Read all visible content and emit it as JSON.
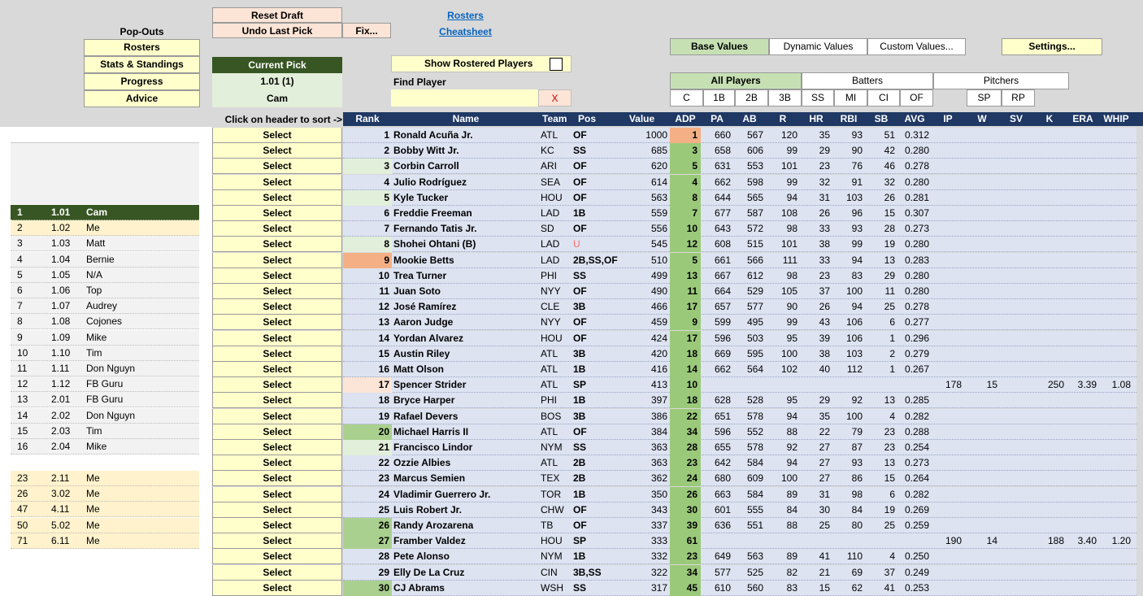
{
  "colors": {
    "header_bg": "#1f3864",
    "button_yellow": "#ffffcc",
    "button_pink": "#fce4d6",
    "adp_green": "#9bc97a",
    "current_pick_dark": "#375623",
    "my_pick": "#fff2cc",
    "table_bg": "#dde3f1"
  },
  "top": {
    "reset_draft": "Reset Draft",
    "undo_last_pick": "Undo Last Pick",
    "fix": "Fix...",
    "rosters_link": "Rosters",
    "cheatsheet_link": "Cheatsheet",
    "popouts_label": "Pop-Outs",
    "popouts": [
      "Rosters",
      "Stats & Standings",
      "Progress",
      "Advice"
    ],
    "current_pick_label": "Current Pick",
    "current_pick_value": "1.01  (1)",
    "current_pick_team": "Cam",
    "show_rostered": "Show Rostered Players",
    "find_player_label": "Find Player",
    "find_player_value": "",
    "clear_x": "X",
    "sort_hint": "Click on header to sort ->",
    "value_modes": [
      "Base Values",
      "Dynamic Values",
      "Custom Values..."
    ],
    "settings": "Settings...",
    "player_groups": [
      "All Players",
      "Batters",
      "Pitchers"
    ],
    "pos_filters_bat": [
      "C",
      "1B",
      "2B",
      "3B",
      "SS",
      "MI",
      "CI",
      "OF"
    ],
    "pos_filters_pit": [
      "SP",
      "RP"
    ]
  },
  "columns": [
    "Rank",
    "Name",
    "Team",
    "Pos",
    "Value",
    "ADP",
    "PA",
    "AB",
    "R",
    "HR",
    "RBI",
    "SB",
    "AVG",
    "IP",
    "W",
    "SV",
    "K",
    "ERA",
    "WHIP"
  ],
  "select_label": "Select",
  "draft_order": [
    {
      "n": "1",
      "pick": "1.01",
      "team": "Cam",
      "current": true
    },
    {
      "n": "2",
      "pick": "1.02",
      "team": "Me",
      "mine": true
    },
    {
      "n": "3",
      "pick": "1.03",
      "team": "Matt"
    },
    {
      "n": "4",
      "pick": "1.04",
      "team": "Bernie"
    },
    {
      "n": "5",
      "pick": "1.05",
      "team": "N/A"
    },
    {
      "n": "6",
      "pick": "1.06",
      "team": "Top"
    },
    {
      "n": "7",
      "pick": "1.07",
      "team": "Audrey"
    },
    {
      "n": "8",
      "pick": "1.08",
      "team": "Cojones"
    },
    {
      "n": "9",
      "pick": "1.09",
      "team": "Mike"
    },
    {
      "n": "10",
      "pick": "1.10",
      "team": "Tim"
    },
    {
      "n": "11",
      "pick": "1.11",
      "team": "Don Nguyn"
    },
    {
      "n": "12",
      "pick": "1.12",
      "team": "FB Guru"
    },
    {
      "n": "13",
      "pick": "2.01",
      "team": "FB Guru"
    },
    {
      "n": "14",
      "pick": "2.02",
      "team": "Don Nguyn"
    },
    {
      "n": "15",
      "pick": "2.03",
      "team": "Tim"
    },
    {
      "n": "16",
      "pick": "2.04",
      "team": "Mike"
    }
  ],
  "my_picks": [
    {
      "n": "23",
      "pick": "2.11",
      "team": "Me"
    },
    {
      "n": "26",
      "pick": "3.02",
      "team": "Me"
    },
    {
      "n": "47",
      "pick": "4.11",
      "team": "Me"
    },
    {
      "n": "50",
      "pick": "5.02",
      "team": "Me"
    },
    {
      "n": "71",
      "pick": "6.11",
      "team": "Me"
    }
  ],
  "players": [
    {
      "rank": "1",
      "name": "Ronald Acuña Jr.",
      "team": "ATL",
      "pos": "OF",
      "value": "1000",
      "adp": "1",
      "pa": "660",
      "ab": "567",
      "r": "120",
      "hr": "35",
      "rbi": "93",
      "sb": "51",
      "avg": "0.312",
      "ip": "",
      "w": "",
      "sv": "",
      "k": "",
      "era": "",
      "whip": "",
      "adp_hi": "orange"
    },
    {
      "rank": "2",
      "name": "Bobby Witt Jr.",
      "team": "KC",
      "pos": "SS",
      "value": "685",
      "adp": "3",
      "pa": "658",
      "ab": "606",
      "r": "99",
      "hr": "29",
      "rbi": "90",
      "sb": "42",
      "avg": "0.280",
      "ip": "",
      "w": "",
      "sv": "",
      "k": "",
      "era": "",
      "whip": ""
    },
    {
      "rank": "3",
      "name": "Corbin Carroll",
      "team": "ARI",
      "pos": "OF",
      "value": "620",
      "adp": "5",
      "pa": "631",
      "ab": "553",
      "r": "101",
      "hr": "23",
      "rbi": "76",
      "sb": "46",
      "avg": "0.278",
      "ip": "",
      "w": "",
      "sv": "",
      "k": "",
      "era": "",
      "whip": "",
      "rank_hi": "lightgreen"
    },
    {
      "rank": "4",
      "name": "Julio Rodríguez",
      "team": "SEA",
      "pos": "OF",
      "value": "614",
      "adp": "4",
      "pa": "662",
      "ab": "598",
      "r": "99",
      "hr": "32",
      "rbi": "91",
      "sb": "32",
      "avg": "0.280",
      "ip": "",
      "w": "",
      "sv": "",
      "k": "",
      "era": "",
      "whip": ""
    },
    {
      "rank": "5",
      "name": "Kyle Tucker",
      "team": "HOU",
      "pos": "OF",
      "value": "563",
      "adp": "8",
      "pa": "644",
      "ab": "565",
      "r": "94",
      "hr": "31",
      "rbi": "103",
      "sb": "26",
      "avg": "0.281",
      "ip": "",
      "w": "",
      "sv": "",
      "k": "",
      "era": "",
      "whip": "",
      "rank_hi": "lightgreen"
    },
    {
      "rank": "6",
      "name": "Freddie Freeman",
      "team": "LAD",
      "pos": "1B",
      "value": "559",
      "adp": "7",
      "pa": "677",
      "ab": "587",
      "r": "108",
      "hr": "26",
      "rbi": "96",
      "sb": "15",
      "avg": "0.307",
      "ip": "",
      "w": "",
      "sv": "",
      "k": "",
      "era": "",
      "whip": ""
    },
    {
      "rank": "7",
      "name": "Fernando Tatis Jr.",
      "team": "SD",
      "pos": "OF",
      "value": "556",
      "adp": "10",
      "pa": "643",
      "ab": "572",
      "r": "98",
      "hr": "33",
      "rbi": "93",
      "sb": "28",
      "avg": "0.273",
      "ip": "",
      "w": "",
      "sv": "",
      "k": "",
      "era": "",
      "whip": ""
    },
    {
      "rank": "8",
      "name": "Shohei Ohtani (B)",
      "team": "LAD",
      "pos": "U",
      "value": "545",
      "adp": "12",
      "pa": "608",
      "ab": "515",
      "r": "101",
      "hr": "38",
      "rbi": "99",
      "sb": "19",
      "avg": "0.280",
      "ip": "",
      "w": "",
      "sv": "",
      "k": "",
      "era": "",
      "whip": "",
      "rank_hi": "lightgreen",
      "pos_red": true
    },
    {
      "rank": "9",
      "name": "Mookie Betts",
      "team": "LAD",
      "pos": "2B,SS,OF",
      "value": "510",
      "adp": "5",
      "pa": "661",
      "ab": "566",
      "r": "111",
      "hr": "33",
      "rbi": "94",
      "sb": "13",
      "avg": "0.283",
      "ip": "",
      "w": "",
      "sv": "",
      "k": "",
      "era": "",
      "whip": "",
      "rank_hi": "orange"
    },
    {
      "rank": "10",
      "name": "Trea Turner",
      "team": "PHI",
      "pos": "SS",
      "value": "499",
      "adp": "13",
      "pa": "667",
      "ab": "612",
      "r": "98",
      "hr": "23",
      "rbi": "83",
      "sb": "29",
      "avg": "0.280",
      "ip": "",
      "w": "",
      "sv": "",
      "k": "",
      "era": "",
      "whip": ""
    },
    {
      "rank": "11",
      "name": "Juan Soto",
      "team": "NYY",
      "pos": "OF",
      "value": "490",
      "adp": "11",
      "pa": "664",
      "ab": "529",
      "r": "105",
      "hr": "37",
      "rbi": "100",
      "sb": "11",
      "avg": "0.280",
      "ip": "",
      "w": "",
      "sv": "",
      "k": "",
      "era": "",
      "whip": ""
    },
    {
      "rank": "12",
      "name": "José Ramírez",
      "team": "CLE",
      "pos": "3B",
      "value": "466",
      "adp": "17",
      "pa": "657",
      "ab": "577",
      "r": "90",
      "hr": "26",
      "rbi": "94",
      "sb": "25",
      "avg": "0.278",
      "ip": "",
      "w": "",
      "sv": "",
      "k": "",
      "era": "",
      "whip": ""
    },
    {
      "rank": "13",
      "name": "Aaron Judge",
      "team": "NYY",
      "pos": "OF",
      "value": "459",
      "adp": "9",
      "pa": "599",
      "ab": "495",
      "r": "99",
      "hr": "43",
      "rbi": "106",
      "sb": "6",
      "avg": "0.277",
      "ip": "",
      "w": "",
      "sv": "",
      "k": "",
      "era": "",
      "whip": ""
    },
    {
      "rank": "14",
      "name": "Yordan Alvarez",
      "team": "HOU",
      "pos": "OF",
      "value": "424",
      "adp": "17",
      "pa": "596",
      "ab": "503",
      "r": "95",
      "hr": "39",
      "rbi": "106",
      "sb": "1",
      "avg": "0.296",
      "ip": "",
      "w": "",
      "sv": "",
      "k": "",
      "era": "",
      "whip": ""
    },
    {
      "rank": "15",
      "name": "Austin Riley",
      "team": "ATL",
      "pos": "3B",
      "value": "420",
      "adp": "18",
      "pa": "669",
      "ab": "595",
      "r": "100",
      "hr": "38",
      "rbi": "103",
      "sb": "2",
      "avg": "0.279",
      "ip": "",
      "w": "",
      "sv": "",
      "k": "",
      "era": "",
      "whip": ""
    },
    {
      "rank": "16",
      "name": "Matt Olson",
      "team": "ATL",
      "pos": "1B",
      "value": "416",
      "adp": "14",
      "pa": "662",
      "ab": "564",
      "r": "102",
      "hr": "40",
      "rbi": "112",
      "sb": "1",
      "avg": "0.267",
      "ip": "",
      "w": "",
      "sv": "",
      "k": "",
      "era": "",
      "whip": ""
    },
    {
      "rank": "17",
      "name": "Spencer Strider",
      "team": "ATL",
      "pos": "SP",
      "value": "413",
      "adp": "10",
      "pa": "",
      "ab": "",
      "r": "",
      "hr": "",
      "rbi": "",
      "sb": "",
      "avg": "",
      "ip": "178",
      "w": "15",
      "sv": "",
      "k": "250",
      "era": "3.39",
      "whip": "1.08",
      "rank_hi": "pink"
    },
    {
      "rank": "18",
      "name": "Bryce Harper",
      "team": "PHI",
      "pos": "1B",
      "value": "397",
      "adp": "18",
      "pa": "628",
      "ab": "528",
      "r": "95",
      "hr": "29",
      "rbi": "92",
      "sb": "13",
      "avg": "0.285",
      "ip": "",
      "w": "",
      "sv": "",
      "k": "",
      "era": "",
      "whip": ""
    },
    {
      "rank": "19",
      "name": "Rafael Devers",
      "team": "BOS",
      "pos": "3B",
      "value": "386",
      "adp": "22",
      "pa": "651",
      "ab": "578",
      "r": "94",
      "hr": "35",
      "rbi": "100",
      "sb": "4",
      "avg": "0.282",
      "ip": "",
      "w": "",
      "sv": "",
      "k": "",
      "era": "",
      "whip": ""
    },
    {
      "rank": "20",
      "name": "Michael Harris II",
      "team": "ATL",
      "pos": "OF",
      "value": "384",
      "adp": "34",
      "pa": "596",
      "ab": "552",
      "r": "88",
      "hr": "22",
      "rbi": "79",
      "sb": "23",
      "avg": "0.288",
      "ip": "",
      "w": "",
      "sv": "",
      "k": "",
      "era": "",
      "whip": "",
      "rank_hi": "green"
    },
    {
      "rank": "21",
      "name": "Francisco Lindor",
      "team": "NYM",
      "pos": "SS",
      "value": "363",
      "adp": "28",
      "pa": "655",
      "ab": "578",
      "r": "92",
      "hr": "27",
      "rbi": "87",
      "sb": "23",
      "avg": "0.254",
      "ip": "",
      "w": "",
      "sv": "",
      "k": "",
      "era": "",
      "whip": "",
      "rank_hi": "lightgreen"
    },
    {
      "rank": "22",
      "name": "Ozzie Albies",
      "team": "ATL",
      "pos": "2B",
      "value": "363",
      "adp": "23",
      "pa": "642",
      "ab": "584",
      "r": "94",
      "hr": "27",
      "rbi": "93",
      "sb": "13",
      "avg": "0.273",
      "ip": "",
      "w": "",
      "sv": "",
      "k": "",
      "era": "",
      "whip": ""
    },
    {
      "rank": "23",
      "name": "Marcus Semien",
      "team": "TEX",
      "pos": "2B",
      "value": "362",
      "adp": "24",
      "pa": "680",
      "ab": "609",
      "r": "100",
      "hr": "27",
      "rbi": "86",
      "sb": "15",
      "avg": "0.264",
      "ip": "",
      "w": "",
      "sv": "",
      "k": "",
      "era": "",
      "whip": ""
    },
    {
      "rank": "24",
      "name": "Vladimir Guerrero Jr.",
      "team": "TOR",
      "pos": "1B",
      "value": "350",
      "adp": "26",
      "pa": "663",
      "ab": "584",
      "r": "89",
      "hr": "31",
      "rbi": "98",
      "sb": "6",
      "avg": "0.282",
      "ip": "",
      "w": "",
      "sv": "",
      "k": "",
      "era": "",
      "whip": ""
    },
    {
      "rank": "25",
      "name": "Luis Robert Jr.",
      "team": "CHW",
      "pos": "OF",
      "value": "343",
      "adp": "30",
      "pa": "601",
      "ab": "555",
      "r": "84",
      "hr": "30",
      "rbi": "84",
      "sb": "19",
      "avg": "0.269",
      "ip": "",
      "w": "",
      "sv": "",
      "k": "",
      "era": "",
      "whip": ""
    },
    {
      "rank": "26",
      "name": "Randy Arozarena",
      "team": "TB",
      "pos": "OF",
      "value": "337",
      "adp": "39",
      "pa": "636",
      "ab": "551",
      "r": "88",
      "hr": "25",
      "rbi": "80",
      "sb": "25",
      "avg": "0.259",
      "ip": "",
      "w": "",
      "sv": "",
      "k": "",
      "era": "",
      "whip": "",
      "rank_hi": "green"
    },
    {
      "rank": "27",
      "name": "Framber Valdez",
      "team": "HOU",
      "pos": "SP",
      "value": "333",
      "adp": "61",
      "pa": "",
      "ab": "",
      "r": "",
      "hr": "",
      "rbi": "",
      "sb": "",
      "avg": "",
      "ip": "190",
      "w": "14",
      "sv": "",
      "k": "188",
      "era": "3.40",
      "whip": "1.20",
      "rank_hi": "green"
    },
    {
      "rank": "28",
      "name": "Pete Alonso",
      "team": "NYM",
      "pos": "1B",
      "value": "332",
      "adp": "23",
      "pa": "649",
      "ab": "563",
      "r": "89",
      "hr": "41",
      "rbi": "110",
      "sb": "4",
      "avg": "0.250",
      "ip": "",
      "w": "",
      "sv": "",
      "k": "",
      "era": "",
      "whip": ""
    },
    {
      "rank": "29",
      "name": "Elly De La Cruz",
      "team": "CIN",
      "pos": "3B,SS",
      "value": "322",
      "adp": "34",
      "pa": "577",
      "ab": "525",
      "r": "82",
      "hr": "21",
      "rbi": "69",
      "sb": "37",
      "avg": "0.249",
      "ip": "",
      "w": "",
      "sv": "",
      "k": "",
      "era": "",
      "whip": ""
    },
    {
      "rank": "30",
      "name": "CJ Abrams",
      "team": "WSH",
      "pos": "SS",
      "value": "317",
      "adp": "45",
      "pa": "610",
      "ab": "560",
      "r": "83",
      "hr": "15",
      "rbi": "62",
      "sb": "41",
      "avg": "0.253",
      "ip": "",
      "w": "",
      "sv": "",
      "k": "",
      "era": "",
      "whip": "",
      "rank_hi": "green"
    }
  ]
}
